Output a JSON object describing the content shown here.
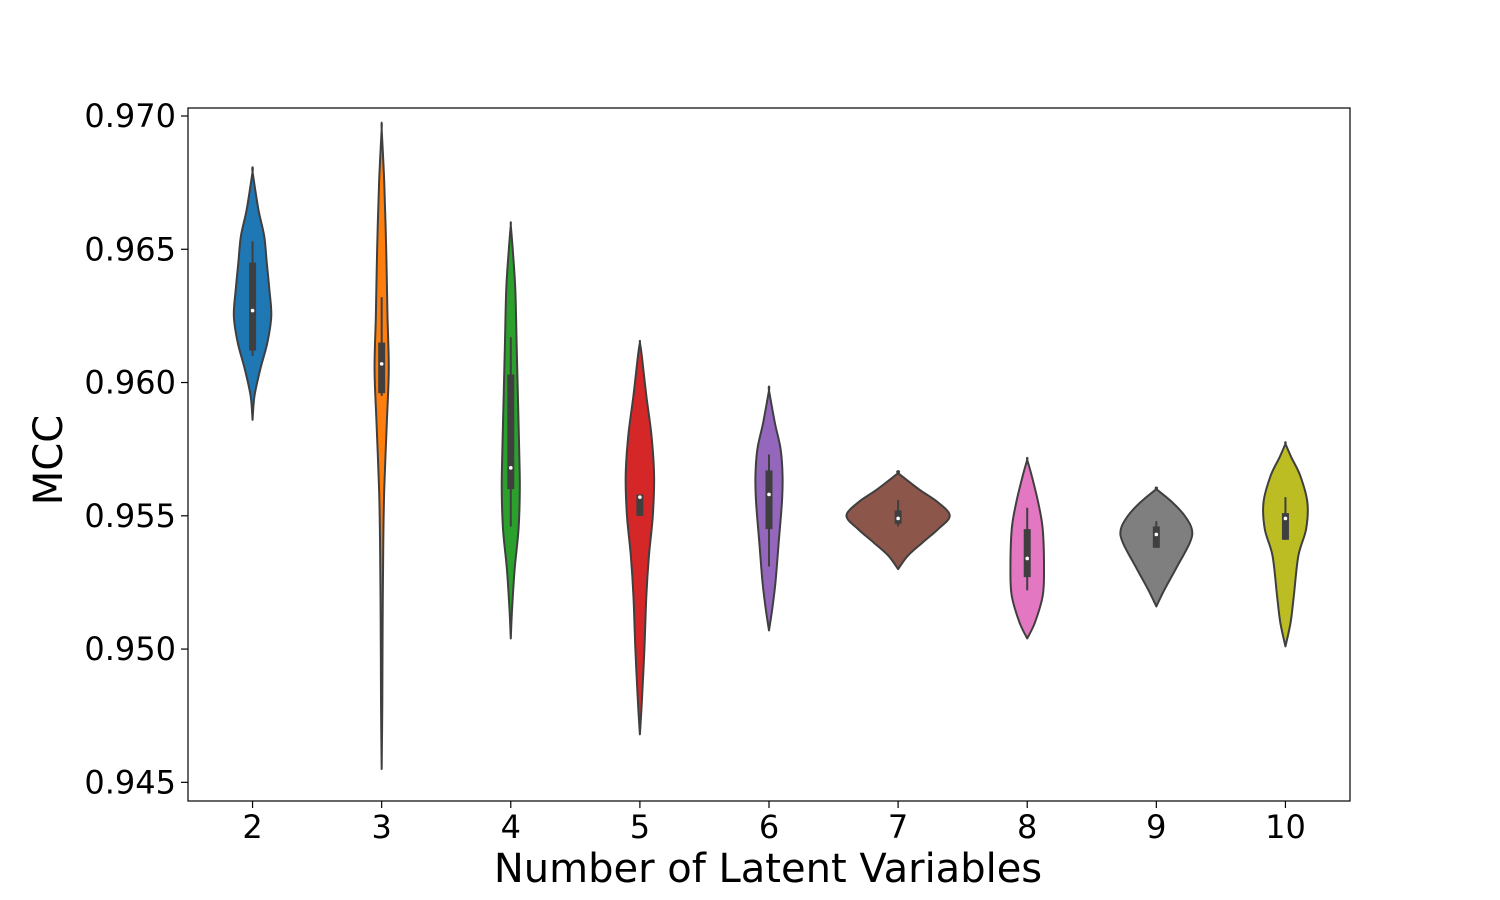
{
  "chart_data": {
    "type": "violin",
    "xlabel": "Number of Latent Variables",
    "ylabel": "MCC",
    "ylim": [
      0.9443,
      0.9703
    ],
    "yticks": [
      "0.945",
      "0.950",
      "0.955",
      "0.960",
      "0.965",
      "0.970"
    ],
    "ytick_values": [
      0.945,
      0.95,
      0.955,
      0.96,
      0.965,
      0.97
    ],
    "categories": [
      "2",
      "3",
      "4",
      "5",
      "6",
      "7",
      "8",
      "9",
      "10"
    ],
    "grid": false,
    "legend": "none",
    "violins": [
      {
        "category": "2",
        "color": "#1f77b4",
        "median": 0.9627,
        "q1": 0.9612,
        "q3": 0.9645,
        "whisker_low": 0.961,
        "whisker_high": 0.9653,
        "profile": [
          [
            0.9586,
            0
          ],
          [
            0.9595,
            0.03
          ],
          [
            0.9605,
            0.12
          ],
          [
            0.9615,
            0.23
          ],
          [
            0.9625,
            0.29
          ],
          [
            0.9635,
            0.26
          ],
          [
            0.9645,
            0.22
          ],
          [
            0.9655,
            0.18
          ],
          [
            0.9665,
            0.09
          ],
          [
            0.9679,
            0
          ]
        ]
      },
      {
        "category": "3",
        "color": "#ff7f0e",
        "median": 0.9607,
        "q1": 0.9596,
        "q3": 0.9615,
        "whisker_low": 0.9595,
        "whisker_high": 0.9632,
        "profile": [
          [
            0.9455,
            0
          ],
          [
            0.948,
            0.01
          ],
          [
            0.951,
            0.015
          ],
          [
            0.954,
            0.025
          ],
          [
            0.956,
            0.04
          ],
          [
            0.9585,
            0.08
          ],
          [
            0.9605,
            0.11
          ],
          [
            0.9625,
            0.09
          ],
          [
            0.965,
            0.07
          ],
          [
            0.9675,
            0.04
          ],
          [
            0.9695,
            0
          ]
        ]
      },
      {
        "category": "4",
        "color": "#2ca02c",
        "median": 0.9568,
        "q1": 0.956,
        "q3": 0.9603,
        "whisker_low": 0.9546,
        "whisker_high": 0.9617,
        "profile": [
          [
            0.9504,
            0
          ],
          [
            0.9515,
            0.02
          ],
          [
            0.953,
            0.06
          ],
          [
            0.9545,
            0.12
          ],
          [
            0.956,
            0.14
          ],
          [
            0.9575,
            0.13
          ],
          [
            0.9595,
            0.11
          ],
          [
            0.9615,
            0.09
          ],
          [
            0.9635,
            0.07
          ],
          [
            0.965,
            0.03
          ],
          [
            0.9659,
            0
          ]
        ]
      },
      {
        "category": "5",
        "color": "#d62728",
        "median": 0.9557,
        "q1": 0.955,
        "q3": 0.9558,
        "whisker_low": 0.955,
        "whisker_high": 0.9558,
        "profile": [
          [
            0.9468,
            0
          ],
          [
            0.948,
            0.03
          ],
          [
            0.95,
            0.07
          ],
          [
            0.952,
            0.1
          ],
          [
            0.9535,
            0.14
          ],
          [
            0.955,
            0.2
          ],
          [
            0.9565,
            0.22
          ],
          [
            0.958,
            0.18
          ],
          [
            0.9595,
            0.1
          ],
          [
            0.961,
            0.03
          ],
          [
            0.9615,
            0
          ]
        ]
      },
      {
        "category": "6",
        "color": "#9467bd",
        "median": 0.9558,
        "q1": 0.9545,
        "q3": 0.9567,
        "whisker_low": 0.9531,
        "whisker_high": 0.9573,
        "profile": [
          [
            0.9507,
            0
          ],
          [
            0.9515,
            0.05
          ],
          [
            0.9525,
            0.1
          ],
          [
            0.954,
            0.15
          ],
          [
            0.9555,
            0.2
          ],
          [
            0.9565,
            0.21
          ],
          [
            0.9575,
            0.18
          ],
          [
            0.9585,
            0.09
          ],
          [
            0.9597,
            0
          ]
        ]
      },
      {
        "category": "7",
        "color": "#8c564b",
        "median": 0.9549,
        "q1": 0.9547,
        "q3": 0.9552,
        "whisker_low": 0.9546,
        "whisker_high": 0.9556,
        "profile": [
          [
            0.953,
            0
          ],
          [
            0.9535,
            0.15
          ],
          [
            0.954,
            0.38
          ],
          [
            0.9545,
            0.62
          ],
          [
            0.955,
            0.8
          ],
          [
            0.9555,
            0.62
          ],
          [
            0.956,
            0.32
          ],
          [
            0.9566,
            0
          ]
        ]
      },
      {
        "category": "8",
        "color": "#e377c2",
        "median": 0.9534,
        "q1": 0.9527,
        "q3": 0.9545,
        "whisker_low": 0.9522,
        "whisker_high": 0.9553,
        "profile": [
          [
            0.9504,
            0
          ],
          [
            0.951,
            0.12
          ],
          [
            0.952,
            0.24
          ],
          [
            0.953,
            0.26
          ],
          [
            0.9545,
            0.24
          ],
          [
            0.9555,
            0.17
          ],
          [
            0.9565,
            0.07
          ],
          [
            0.9571,
            0
          ]
        ]
      },
      {
        "category": "9",
        "color": "#7f7f7f",
        "median": 0.9543,
        "q1": 0.9538,
        "q3": 0.9546,
        "whisker_low": 0.9538,
        "whisker_high": 0.9548,
        "profile": [
          [
            0.9516,
            0
          ],
          [
            0.9522,
            0.12
          ],
          [
            0.953,
            0.3
          ],
          [
            0.954,
            0.52
          ],
          [
            0.9545,
            0.55
          ],
          [
            0.955,
            0.44
          ],
          [
            0.9555,
            0.25
          ],
          [
            0.956,
            0
          ]
        ]
      },
      {
        "category": "10",
        "color": "#bcbd22",
        "median": 0.9549,
        "q1": 0.9541,
        "q3": 0.9551,
        "whisker_low": 0.9541,
        "whisker_high": 0.9557,
        "profile": [
          [
            0.9501,
            0
          ],
          [
            0.951,
            0.08
          ],
          [
            0.952,
            0.13
          ],
          [
            0.9535,
            0.2
          ],
          [
            0.9545,
            0.32
          ],
          [
            0.9555,
            0.34
          ],
          [
            0.9565,
            0.23
          ],
          [
            0.9572,
            0.09
          ],
          [
            0.9577,
            0
          ]
        ]
      }
    ]
  }
}
